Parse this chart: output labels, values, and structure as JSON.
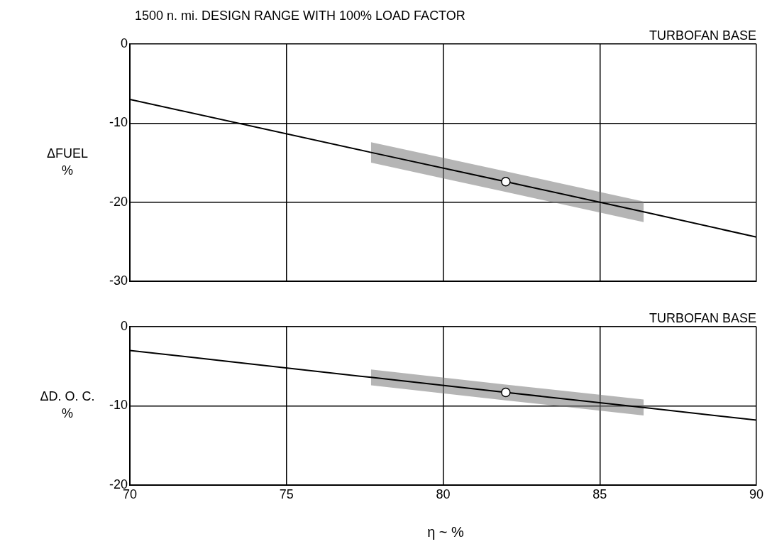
{
  "chart_data": [
    {
      "type": "line",
      "title": "1500 n. mi. DESIGN RANGE WITH 100% LOAD FACTOR",
      "ylabel": "ΔFUEL %",
      "annotations": [
        "TURBOFAN BASE"
      ],
      "xlim": [
        70,
        90
      ],
      "xticks": [
        70,
        75,
        80,
        85,
        90
      ],
      "ylim": [
        -30,
        0
      ],
      "yticks": [
        -30,
        -20,
        -10,
        0
      ],
      "grid": true,
      "tick_labels": "y",
      "legend": false,
      "series": [
        {
          "color": "#000000",
          "marker": "none",
          "x": [
            70,
            77.7,
            82,
            86.4,
            90
          ],
          "values": [
            -7,
            -13.7,
            -17.4,
            -21.2,
            -24.4
          ],
          "lower": [
            null,
            -15,
            -18.7,
            -22.5,
            null
          ],
          "upper": [
            null,
            -12.4,
            -16.1,
            -19.9,
            null
          ]
        },
        {
          "type": "scatter",
          "color": "#000000",
          "marker": "circle",
          "x": [
            82
          ],
          "values": [
            -17.4
          ]
        }
      ]
    },
    {
      "type": "line",
      "xlabel": "η ~ %",
      "ylabel": "ΔD. O. C. %",
      "annotations": [
        "TURBOFAN BASE"
      ],
      "xlim": [
        70,
        90
      ],
      "xticks": [
        70,
        75,
        80,
        85,
        90
      ],
      "ylim": [
        -20,
        0
      ],
      "yticks": [
        -20,
        -10,
        0
      ],
      "grid": true,
      "legend": false,
      "series": [
        {
          "color": "#000000",
          "marker": "none",
          "x": [
            70,
            77.7,
            82,
            86.4,
            90
          ],
          "values": [
            -3,
            -6.4,
            -8.3,
            -10.2,
            -11.8
          ],
          "lower": [
            null,
            -7.4,
            -9.3,
            -11.2,
            null
          ],
          "upper": [
            null,
            -5.4,
            -7.3,
            -9.2,
            null
          ]
        },
        {
          "type": "scatter",
          "color": "#000000",
          "marker": "circle",
          "x": [
            82
          ],
          "values": [
            -8.3
          ]
        }
      ]
    }
  ]
}
